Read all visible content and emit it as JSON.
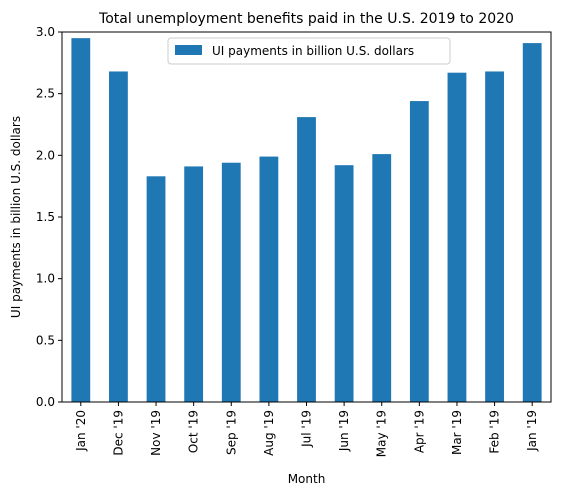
{
  "chart_data": {
    "type": "bar",
    "title": "Total unemployment benefits paid in the U.S. 2019 to 2020",
    "xlabel": "Month",
    "ylabel": "UI payments in billion U.S. dollars",
    "categories": [
      "Jan '20",
      "Dec '19",
      "Nov '19",
      "Oct '19",
      "Sep '19",
      "Aug '19",
      "Jul '19",
      "Jun '19",
      "May '19",
      "Apr '19",
      "Mar '19",
      "Feb '19",
      "Jan '19"
    ],
    "series": [
      {
        "name": "UI payments in billion U.S. dollars",
        "color": "#1f77b4",
        "values": [
          2.95,
          2.68,
          1.83,
          1.91,
          1.94,
          1.99,
          2.31,
          1.92,
          2.01,
          2.44,
          2.67,
          2.68,
          2.91
        ]
      }
    ],
    "ylim": [
      0,
      3.0
    ],
    "yticks": [
      "0.0",
      "0.5",
      "1.0",
      "1.5",
      "2.0",
      "2.5",
      "3.0"
    ],
    "grid": false,
    "legend_position": "top-center"
  }
}
